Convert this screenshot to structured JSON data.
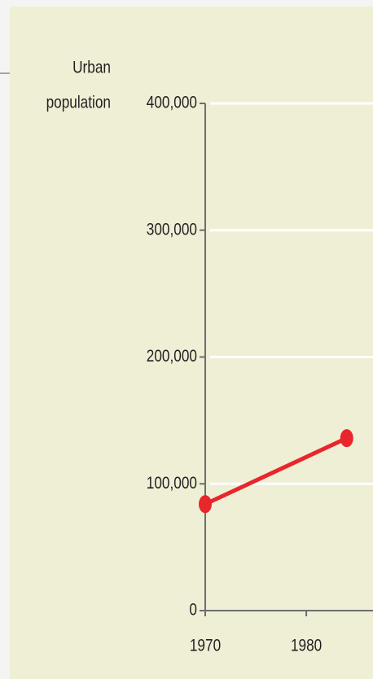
{
  "chart_data": {
    "type": "line",
    "ylabel": [
      "Urban",
      "population"
    ],
    "x": [
      1970,
      1984
    ],
    "series": [
      {
        "name": "Urban population",
        "color": "#e8262b",
        "values": [
          84000,
          136000
        ]
      }
    ],
    "xlim": [
      1970,
      1986.6
    ],
    "xticks": [
      1970,
      1980
    ],
    "ylim": [
      0,
      400000
    ],
    "yticks": [
      {
        "value": 0,
        "label": "0"
      },
      {
        "value": 100000,
        "label": "100,000"
      },
      {
        "value": 200000,
        "label": "200,000"
      },
      {
        "value": 300000,
        "label": "300,000"
      },
      {
        "value": 400000,
        "label": "400,000"
      }
    ],
    "grid": true
  }
}
